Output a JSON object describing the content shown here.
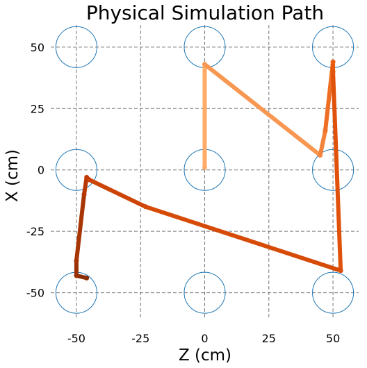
{
  "chart_data": {
    "type": "line",
    "title": "Physical Simulation Path",
    "xlabel": "Z (cm)",
    "ylabel": "X (cm)",
    "xlim": [
      -60,
      60
    ],
    "ylim": [
      -60,
      59
    ],
    "xticks": [
      -50,
      -25,
      0,
      25,
      50
    ],
    "yticks": [
      50,
      25,
      0,
      -25,
      -50
    ],
    "grid": true,
    "grid_style": "dashed",
    "circles": {
      "centers": [
        [
          -50,
          50
        ],
        [
          0,
          50
        ],
        [
          50,
          50
        ],
        [
          -50,
          0
        ],
        [
          0,
          0
        ],
        [
          50,
          0
        ],
        [
          -50,
          -50
        ],
        [
          0,
          -50
        ],
        [
          50,
          -50
        ]
      ],
      "radius": 8,
      "color": "#1f77b4"
    },
    "path": {
      "colors": [
        "#fdab67",
        "#e9590e",
        "#c43d04",
        "#8c2d04"
      ],
      "points": [
        [
          0,
          1
        ],
        [
          0,
          43
        ],
        [
          45,
          6
        ],
        [
          47,
          16
        ],
        [
          50,
          44
        ],
        [
          50,
          40
        ],
        [
          53,
          -41
        ],
        [
          -23,
          -15
        ],
        [
          -45,
          -4
        ],
        [
          -46,
          -3
        ],
        [
          -47,
          -10
        ],
        [
          -50,
          -37
        ],
        [
          -50,
          -43
        ],
        [
          -46,
          -44
        ]
      ]
    }
  }
}
